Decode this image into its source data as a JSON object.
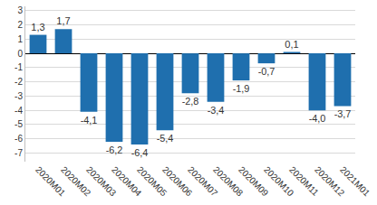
{
  "chart_data": {
    "type": "bar",
    "categories": [
      "2020M01",
      "2020M02",
      "2020M03",
      "2020M04",
      "2020M05",
      "2020M06",
      "2020M07",
      "2020M08",
      "2020M09",
      "2020M10",
      "2020M11",
      "2020M12",
      "2021M01"
    ],
    "values": [
      1.3,
      1.7,
      -4.1,
      -6.2,
      -6.4,
      -5.4,
      -2.8,
      -3.4,
      -1.9,
      -0.7,
      0.1,
      -4.0,
      -3.7
    ],
    "value_labels": [
      "1,3",
      "1,7",
      "-4,1",
      "-6,2",
      "-6,4",
      "-5,4",
      "-2,8",
      "-3,4",
      "-1,9",
      "-0,7",
      "0,1",
      "-4,0",
      "-3,7"
    ],
    "data_labels": true,
    "color": "#1f6fae",
    "ylim": [
      -7.6,
      3.3
    ],
    "yticks": [
      -7,
      -6,
      -5,
      -4,
      -3,
      -2,
      -1,
      0,
      1,
      2,
      3
    ],
    "grid": true
  }
}
